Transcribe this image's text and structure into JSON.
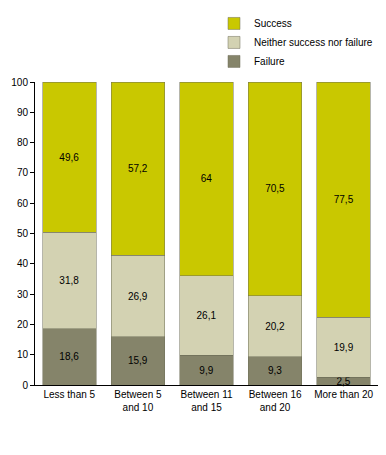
{
  "chart_data": {
    "type": "bar",
    "stacked": true,
    "data_labels": true,
    "grid": false,
    "legend": "top right",
    "categories": [
      "Less than 5",
      "Between 5 and 10",
      "Between 11 and 15",
      "Between 16 and 20",
      "More than 20"
    ],
    "series": [
      {
        "name": "Failure",
        "color": "#85846a",
        "values": [
          18.6,
          15.9,
          9.9,
          9.3,
          2.5
        ],
        "value_labels": [
          "18,6",
          "15,9",
          "9,9",
          "9,3",
          "2,5"
        ]
      },
      {
        "name": "Neither success nor failure",
        "color": "#d3d2b2",
        "values": [
          31.8,
          26.9,
          26.1,
          20.2,
          19.9
        ],
        "value_labels": [
          "31,8",
          "26,9",
          "26,1",
          "20,2",
          "19,9"
        ]
      },
      {
        "name": "Success",
        "color": "#c9c800",
        "values": [
          49.6,
          57.2,
          64,
          70.5,
          77.5
        ],
        "value_labels": [
          "49,6",
          "57,2",
          "64",
          "70,5",
          "77,5"
        ]
      }
    ],
    "ylim": [
      0,
      100
    ],
    "yticks": [
      0,
      10,
      20,
      30,
      40,
      50,
      60,
      70,
      80,
      90,
      100
    ]
  }
}
